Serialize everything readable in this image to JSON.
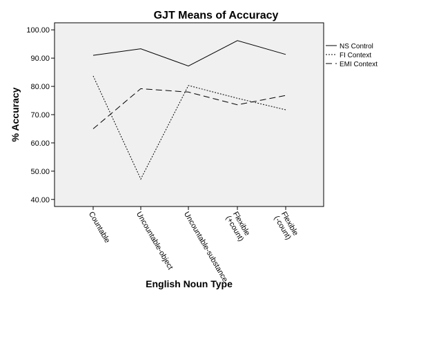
{
  "chart_data": {
    "type": "line",
    "title": "GJT Means of Accuracy",
    "xlabel": "English Noun Type",
    "ylabel": "% Accuracy",
    "categories": [
      [
        "Countable"
      ],
      [
        "Uncountable-object"
      ],
      [
        "Uncountable-substance"
      ],
      [
        "Flexible",
        "(+count)"
      ],
      [
        "Flexible",
        "(-count)"
      ]
    ],
    "ylim": [
      37.5,
      102.5
    ],
    "yticks": [
      "40.00",
      "50.00",
      "60.00",
      "70.00",
      "80.00",
      "90.00",
      "100.00"
    ],
    "series": [
      {
        "name": "NS Control",
        "values": [
          91.0,
          93.3,
          87.2,
          96.2,
          91.3
        ],
        "dash": "solid"
      },
      {
        "name": "FI Context",
        "values": [
          83.7,
          47.2,
          80.3,
          75.8,
          71.7
        ],
        "dash": "dotted"
      },
      {
        "name": "EMI Context",
        "values": [
          65.0,
          79.2,
          78.0,
          73.5,
          76.8
        ],
        "dash": "dashed"
      }
    ],
    "legend_position": "right",
    "grid": false,
    "plot_background": "#f0f0f0"
  }
}
